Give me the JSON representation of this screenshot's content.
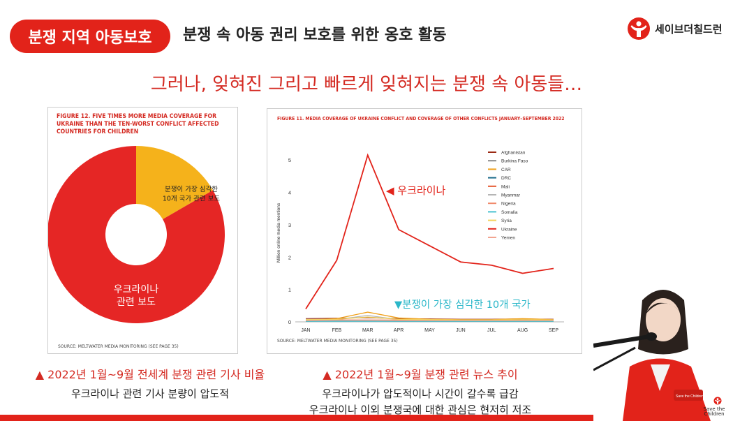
{
  "header": {
    "badge": "분쟁 지역 아동보호",
    "title": "분쟁 속 아동 권리 보호를 위한 옹호 활동",
    "brand": "세이브더칠드런"
  },
  "headline": "그러나, 잊혀진 그리고 빠르게 잊혀지는 분쟁 속 아동들…",
  "left_panel": {
    "fig_title": "FIGURE 12. FIVE TIMES MORE MEDIA COVERAGE FOR UKRAINE THAN THE TEN-WORST CONFLICT AFFECTED COUNTRIES FOR CHILDREN",
    "source": "SOURCE: MELTWATER MEDIA MONITORING (SEE PAGE 35)"
  },
  "right_panel": {
    "fig_title": "FIGURE 11. MEDIA COVERAGE OF UKRAINE CONFLICT AND COVERAGE OF OTHER CONFLICTS JANUARY–SEPTEMBER 2022",
    "source": "SOURCE: MELTWATER MEDIA MONITORING (SEE PAGE 35)"
  },
  "captions": {
    "left_title": "▲ 2022년 1월~9월 전세계 분쟁 관련 기사 비율",
    "left_line1": "우크라이나 관련 기사 분량이 압도적",
    "right_title": "▲ 2022년 1월~9월 분쟁 관련 뉴스 추이",
    "right_line1": "우크라이나가 압도적이나 시간이 갈수록 급감",
    "right_line2": "우크라이나 이외 분쟁국에 대한 관심은 현저히 저조"
  },
  "logo_text": "Save the Children",
  "chart_data": [
    {
      "type": "pie",
      "donut": true,
      "slices": [
        {
          "label": "분쟁이 가장 심각한 10개 국가 관련 보도",
          "value": 1,
          "color": "#f5b21b"
        },
        {
          "label": "우크라이나 관련 보도",
          "value": 5,
          "color": "#e52625"
        }
      ],
      "slice_text": [
        [
          "분쟁이 가장 심각한",
          "10개 국가 관련 보도"
        ],
        [
          "우크라이나",
          "관련  보도"
        ]
      ]
    },
    {
      "type": "line",
      "x": [
        "JAN",
        "FEB",
        "MAR",
        "APR",
        "MAY",
        "JUN",
        "JUL",
        "AUG",
        "SEP"
      ],
      "ylabel": "Million online media mentions",
      "ylim": [
        0,
        5.5
      ],
      "yticks": [
        0,
        1,
        2,
        3,
        4,
        5
      ],
      "legend_position": "top-right",
      "series": [
        {
          "name": "Afghanistan",
          "color": "#9b2a14",
          "values": [
            0.1,
            0.11,
            0.13,
            0.1,
            0.09,
            0.08,
            0.08,
            0.09,
            0.08
          ]
        },
        {
          "name": "Burkina Faso",
          "color": "#8b8b8b",
          "values": [
            0.02,
            0.03,
            0.03,
            0.02,
            0.02,
            0.02,
            0.02,
            0.02,
            0.02
          ]
        },
        {
          "name": "CAR",
          "color": "#f0a11c",
          "values": [
            0.05,
            0.1,
            0.3,
            0.12,
            0.08,
            0.07,
            0.07,
            0.1,
            0.07
          ]
        },
        {
          "name": "DRC",
          "color": "#1c6b8a",
          "values": [
            0.03,
            0.03,
            0.04,
            0.03,
            0.03,
            0.03,
            0.03,
            0.03,
            0.03
          ]
        },
        {
          "name": "Mali",
          "color": "#e4572e",
          "values": [
            0.05,
            0.06,
            0.05,
            0.05,
            0.04,
            0.04,
            0.04,
            0.04,
            0.04
          ]
        },
        {
          "name": "Myanmar",
          "color": "#b5b5b5",
          "values": [
            0.08,
            0.07,
            0.2,
            0.07,
            0.06,
            0.06,
            0.06,
            0.06,
            0.06
          ]
        },
        {
          "name": "Nigeria",
          "color": "#f08a6c",
          "values": [
            0.06,
            0.06,
            0.06,
            0.06,
            0.05,
            0.05,
            0.05,
            0.05,
            0.05
          ]
        },
        {
          "name": "Somalia",
          "color": "#49c2d0",
          "values": [
            0.02,
            0.02,
            0.02,
            0.02,
            0.02,
            0.02,
            0.02,
            0.02,
            0.02
          ]
        },
        {
          "name": "Syria",
          "color": "#f3d35c",
          "values": [
            0.07,
            0.08,
            0.15,
            0.08,
            0.07,
            0.06,
            0.06,
            0.07,
            0.06
          ]
        },
        {
          "name": "Ukraine",
          "color": "#e2231a",
          "values": [
            0.4,
            1.9,
            5.15,
            2.85,
            2.35,
            1.85,
            1.75,
            1.5,
            1.65
          ]
        },
        {
          "name": "Yemen",
          "color": "#f2a490",
          "values": [
            0.04,
            0.05,
            0.05,
            0.04,
            0.04,
            0.04,
            0.04,
            0.04,
            0.04
          ]
        }
      ],
      "annotations": [
        "◀ 우크라이나",
        "▼분쟁이 가장 심각한 10개 국가"
      ]
    }
  ]
}
